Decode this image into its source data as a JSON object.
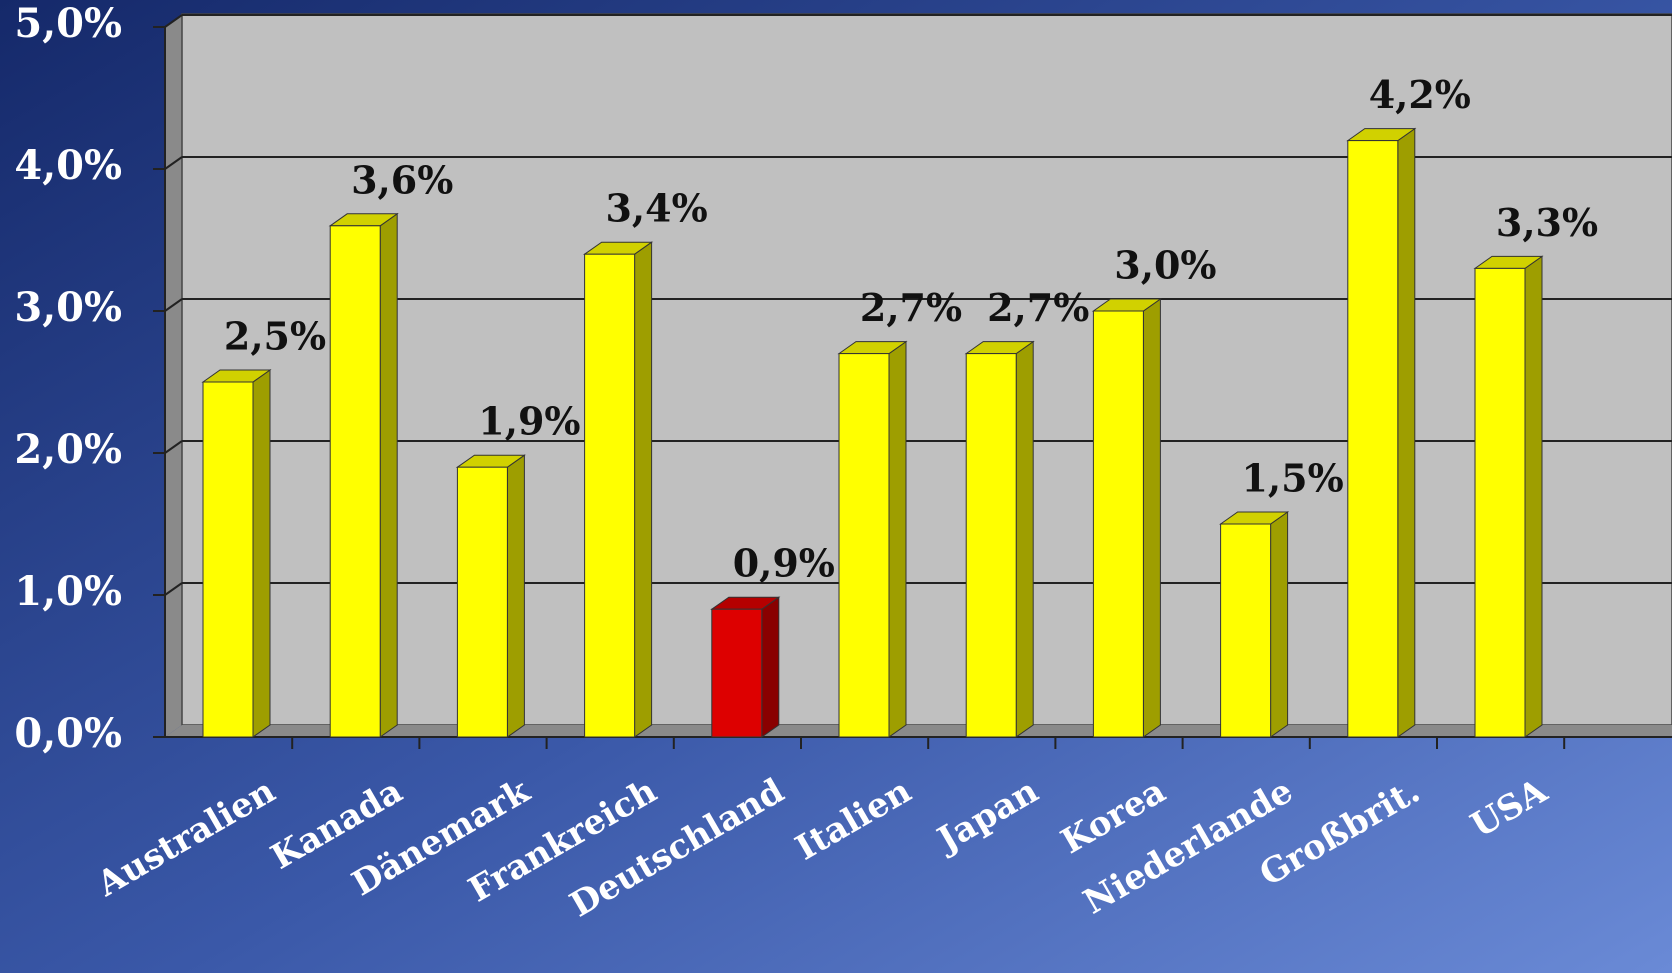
{
  "chart_data": {
    "type": "bar",
    "categories": [
      "Australien",
      "Kanada",
      "Dänemark",
      "Frankreich",
      "Deutschland",
      "Italien",
      "Japan",
      "Korea",
      "Niederlande",
      "Großbrit.",
      "USA"
    ],
    "values": [
      2.5,
      3.6,
      1.9,
      3.4,
      0.9,
      2.7,
      2.7,
      3.0,
      1.5,
      4.2,
      3.3
    ],
    "value_labels": [
      "2,5%",
      "3,6%",
      "1,9%",
      "3,4%",
      "0,9%",
      "2,7%",
      "2,7%",
      "3,0%",
      "1,5%",
      "4,2%",
      "3,3%"
    ],
    "colors": [
      "#ffff00",
      "#ffff00",
      "#ffff00",
      "#ffff00",
      "#dd0000",
      "#ffff00",
      "#ffff00",
      "#ffff00",
      "#ffff00",
      "#ffff00",
      "#ffff00"
    ],
    "ylim": [
      0,
      5
    ],
    "yticks": [
      {
        "value": 0,
        "label": "0,0%"
      },
      {
        "value": 1,
        "label": "1,0%"
      },
      {
        "value": 2,
        "label": "2,0%"
      },
      {
        "value": 3,
        "label": "3,0%"
      },
      {
        "value": 4,
        "label": "4,0%"
      },
      {
        "value": 5,
        "label": "5,0%"
      }
    ],
    "grid": true
  }
}
